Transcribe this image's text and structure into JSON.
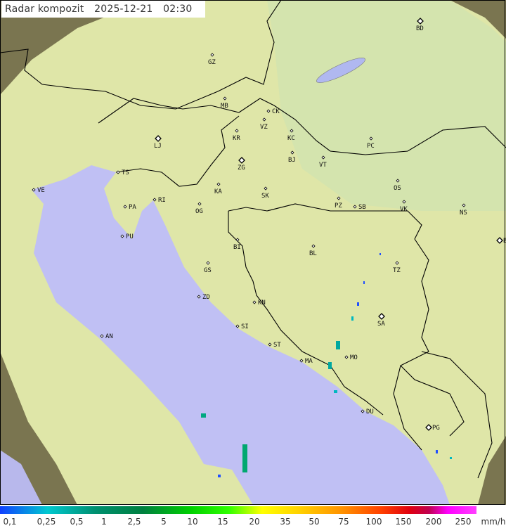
{
  "header": {
    "title": "Radar kompozit",
    "date": "2025-12-21",
    "time": "02:30"
  },
  "legend": {
    "unit": "mm/h",
    "labels": [
      "0,1",
      "0,25",
      "0,5",
      "1",
      "2,5",
      "5",
      "10",
      "15",
      "20",
      "35",
      "50",
      "75",
      "100",
      "150",
      "200",
      "250"
    ]
  },
  "colors": {
    "sea": "#c0c0f4",
    "coverage": "#dfe6a8",
    "outside": "#7a7550",
    "border": "#000000",
    "rain_light": "#00b8c0",
    "rain_blue": "#2050ff"
  },
  "cities": [
    {
      "label": "GZ",
      "capital": false
    },
    {
      "label": "BD",
      "capital": true
    },
    {
      "label": "MB",
      "capital": false
    },
    {
      "label": "CK",
      "capital": false
    },
    {
      "label": "VZ",
      "capital": false
    },
    {
      "label": "KR",
      "capital": false
    },
    {
      "label": "KC",
      "capital": false
    },
    {
      "label": "LJ",
      "capital": true
    },
    {
      "label": "PC",
      "capital": false
    },
    {
      "label": "BJ",
      "capital": false
    },
    {
      "label": "VT",
      "capital": false
    },
    {
      "label": "ZG",
      "capital": true
    },
    {
      "label": "TS",
      "capital": false
    },
    {
      "label": "OS",
      "capital": false
    },
    {
      "label": "VE",
      "capital": false
    },
    {
      "label": "RI",
      "capital": false
    },
    {
      "label": "KA",
      "capital": false
    },
    {
      "label": "SK",
      "capital": false
    },
    {
      "label": "PA",
      "capital": false
    },
    {
      "label": "OG",
      "capital": false
    },
    {
      "label": "PZ",
      "capital": false
    },
    {
      "label": "SB",
      "capital": false
    },
    {
      "label": "VK",
      "capital": false
    },
    {
      "label": "NS",
      "capital": false
    },
    {
      "label": "PU",
      "capital": false
    },
    {
      "label": "BI",
      "capital": false
    },
    {
      "label": "BL",
      "capital": false
    },
    {
      "label": "BG",
      "capital": true
    },
    {
      "label": "GS",
      "capital": false
    },
    {
      "label": "TZ",
      "capital": false
    },
    {
      "label": "ZD",
      "capital": false
    },
    {
      "label": "KN",
      "capital": false
    },
    {
      "label": "SA",
      "capital": true
    },
    {
      "label": "AN",
      "capital": false
    },
    {
      "label": "SI",
      "capital": false
    },
    {
      "label": "ST",
      "capital": false
    },
    {
      "label": "MO",
      "capital": false
    },
    {
      "label": "MA",
      "capital": false
    },
    {
      "label": "DU",
      "capital": false
    },
    {
      "label": "PG",
      "capital": true
    }
  ]
}
